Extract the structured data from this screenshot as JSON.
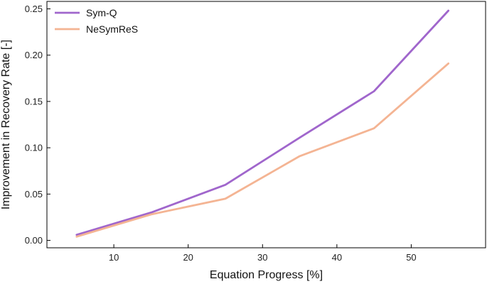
{
  "chart_data": {
    "type": "line",
    "title": "",
    "xlabel": "Equation Progress [%]",
    "ylabel": "Improvement in Recovery Rate [-]",
    "xlim": [
      1,
      60
    ],
    "ylim": [
      -0.008,
      0.258
    ],
    "xticks": [
      10,
      20,
      30,
      40,
      50
    ],
    "yticks": [
      "0.00",
      "0.05",
      "0.10",
      "0.15",
      "0.20",
      "0.25"
    ],
    "x": [
      5,
      15,
      25,
      35,
      45,
      55
    ],
    "series": [
      {
        "name": "Sym-Q",
        "color": "#a066cc",
        "values": [
          0.006,
          0.03,
          0.06,
          0.111,
          0.161,
          0.248
        ]
      },
      {
        "name": "NeSymReS",
        "color": "#f4b493",
        "values": [
          0.004,
          0.028,
          0.045,
          0.091,
          0.121,
          0.191
        ]
      }
    ],
    "legend": {
      "position": "top-left"
    },
    "grid": false
  }
}
